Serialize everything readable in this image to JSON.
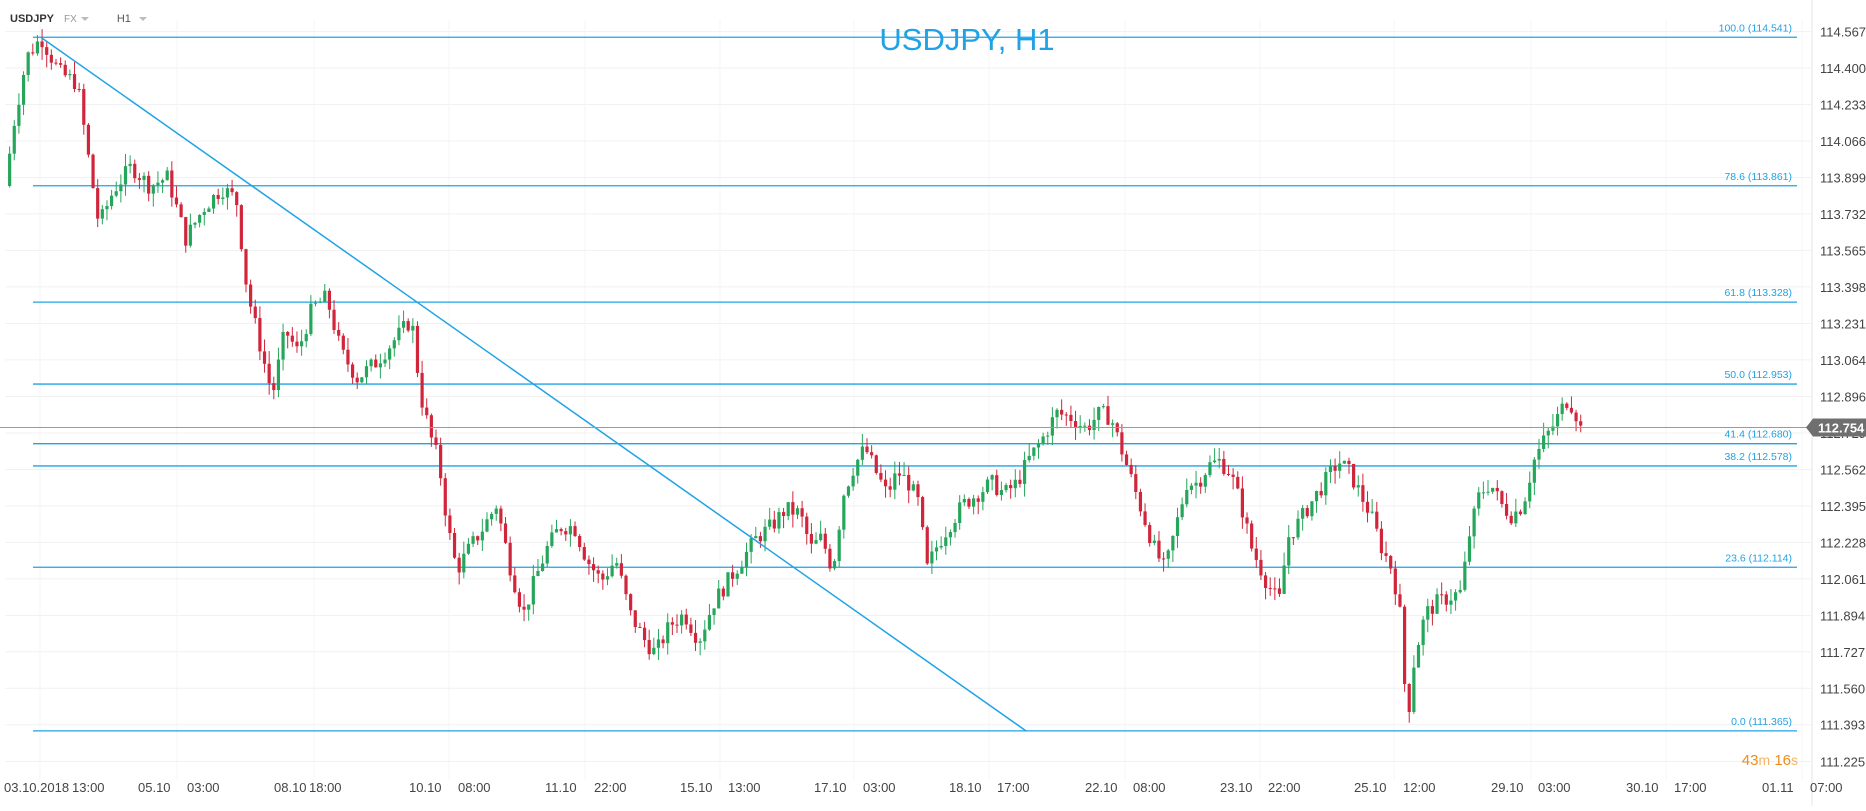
{
  "toolbar": {
    "symbol": "USDJPY",
    "market": "FX",
    "timeframe": "H1"
  },
  "timer": {
    "minutes": "43",
    "minutes_unit": "m",
    "seconds": "16",
    "seconds_unit": "s"
  },
  "colors": {
    "bull": "#26a65b",
    "bear": "#d0253b",
    "line": "#1fa3e6",
    "axis_text": "#444444",
    "title": "#1fa3e6",
    "price_badge": "#6f6f6f",
    "timer": "#f08c1a"
  },
  "chart_data": {
    "type": "candlestick",
    "title": "USDJPY, H1",
    "ylim": [
      111.14,
      114.62
    ],
    "y_ticks": [
      "114.567",
      "114.400",
      "114.233",
      "114.066",
      "113.899",
      "113.732",
      "113.565",
      "113.398",
      "113.231",
      "113.064",
      "112.896",
      "112.729",
      "112.562",
      "112.395",
      "112.228",
      "112.061",
      "111.894",
      "111.727",
      "111.560",
      "111.393",
      "111.225"
    ],
    "x_ticks": [
      "03.10.2018",
      "13:00",
      "05.10",
      "03:00",
      "08.10",
      "18:00",
      "10.10",
      "08:00",
      "11.10",
      "22:00",
      "15.10",
      "13:00",
      "17.10",
      "03:00",
      "18.10",
      "17:00",
      "22.10",
      "08:00",
      "23.10",
      "22:00",
      "25.10",
      "12:00",
      "29.10",
      "03:00",
      "30.10",
      "17:00",
      "01.11",
      "07:00"
    ],
    "current_price": "112.754",
    "fibonacci": [
      {
        "label": "100.0 (114.541)",
        "price": 114.541
      },
      {
        "label": "78.6 (113.861)",
        "price": 113.861
      },
      {
        "label": "61.8 (113.328)",
        "price": 113.328
      },
      {
        "label": "50.0 (112.953)",
        "price": 112.953
      },
      {
        "label": "41.4 (112.680)",
        "price": 112.68
      },
      {
        "label": "38.2 (112.578)",
        "price": 112.578
      },
      {
        "label": "23.6 (112.114)",
        "price": 112.114
      },
      {
        "label": "0.0 (111.365)",
        "price": 111.365
      }
    ],
    "trendline": {
      "from": {
        "x": 0.02,
        "price": 114.54
      },
      "to": {
        "x": 0.565,
        "price": 111.365
      }
    },
    "path": [
      [
        0.0,
        113.86
      ],
      [
        0.005,
        114.15
      ],
      [
        0.012,
        114.45
      ],
      [
        0.02,
        114.54
      ],
      [
        0.03,
        114.38
      ],
      [
        0.04,
        114.33
      ],
      [
        0.046,
        114.0
      ],
      [
        0.052,
        113.68
      ],
      [
        0.06,
        113.84
      ],
      [
        0.07,
        113.95
      ],
      [
        0.08,
        113.86
      ],
      [
        0.09,
        113.9
      ],
      [
        0.1,
        113.62
      ],
      [
        0.11,
        113.76
      ],
      [
        0.12,
        113.85
      ],
      [
        0.128,
        113.8
      ],
      [
        0.134,
        113.38
      ],
      [
        0.142,
        113.1
      ],
      [
        0.148,
        112.9
      ],
      [
        0.155,
        113.2
      ],
      [
        0.162,
        113.1
      ],
      [
        0.17,
        113.3
      ],
      [
        0.178,
        113.35
      ],
      [
        0.186,
        113.1
      ],
      [
        0.195,
        112.98
      ],
      [
        0.205,
        113.05
      ],
      [
        0.215,
        113.15
      ],
      [
        0.225,
        113.25
      ],
      [
        0.23,
        112.9
      ],
      [
        0.236,
        112.7
      ],
      [
        0.24,
        112.6
      ],
      [
        0.245,
        112.3
      ],
      [
        0.25,
        112.1
      ],
      [
        0.257,
        112.2
      ],
      [
        0.265,
        112.3
      ],
      [
        0.272,
        112.4
      ],
      [
        0.28,
        112.1
      ],
      [
        0.287,
        111.9
      ],
      [
        0.293,
        112.05
      ],
      [
        0.3,
        112.2
      ],
      [
        0.307,
        112.3
      ],
      [
        0.315,
        112.3
      ],
      [
        0.322,
        112.15
      ],
      [
        0.33,
        112.05
      ],
      [
        0.338,
        112.15
      ],
      [
        0.346,
        111.9
      ],
      [
        0.354,
        111.78
      ],
      [
        0.36,
        111.72
      ],
      [
        0.368,
        111.85
      ],
      [
        0.376,
        111.9
      ],
      [
        0.384,
        111.78
      ],
      [
        0.392,
        111.95
      ],
      [
        0.4,
        112.05
      ],
      [
        0.408,
        112.15
      ],
      [
        0.416,
        112.25
      ],
      [
        0.424,
        112.3
      ],
      [
        0.432,
        112.38
      ],
      [
        0.44,
        112.36
      ],
      [
        0.446,
        112.2
      ],
      [
        0.452,
        112.25
      ],
      [
        0.458,
        112.1
      ],
      [
        0.464,
        112.45
      ],
      [
        0.47,
        112.58
      ],
      [
        0.476,
        112.66
      ],
      [
        0.482,
        112.55
      ],
      [
        0.488,
        112.45
      ],
      [
        0.494,
        112.55
      ],
      [
        0.5,
        112.5
      ],
      [
        0.506,
        112.4
      ],
      [
        0.51,
        112.1
      ],
      [
        0.515,
        112.2
      ],
      [
        0.522,
        112.3
      ],
      [
        0.53,
        112.4
      ],
      [
        0.538,
        112.45
      ],
      [
        0.546,
        112.5
      ],
      [
        0.553,
        112.45
      ],
      [
        0.56,
        112.5
      ],
      [
        0.566,
        112.6
      ],
      [
        0.574,
        112.7
      ],
      [
        0.582,
        112.82
      ],
      [
        0.59,
        112.8
      ],
      [
        0.598,
        112.75
      ],
      [
        0.606,
        112.82
      ],
      [
        0.612,
        112.8
      ],
      [
        0.618,
        112.65
      ],
      [
        0.624,
        112.5
      ],
      [
        0.63,
        112.35
      ],
      [
        0.636,
        112.2
      ],
      [
        0.642,
        112.1
      ],
      [
        0.648,
        112.3
      ],
      [
        0.654,
        112.5
      ],
      [
        0.66,
        112.5
      ],
      [
        0.666,
        112.58
      ],
      [
        0.672,
        112.6
      ],
      [
        0.678,
        112.55
      ],
      [
        0.684,
        112.4
      ],
      [
        0.69,
        112.2
      ],
      [
        0.698,
        112.05
      ],
      [
        0.705,
        111.95
      ],
      [
        0.71,
        112.25
      ],
      [
        0.716,
        112.32
      ],
      [
        0.722,
        112.4
      ],
      [
        0.73,
        112.5
      ],
      [
        0.738,
        112.6
      ],
      [
        0.744,
        112.55
      ],
      [
        0.75,
        112.45
      ],
      [
        0.756,
        112.35
      ],
      [
        0.762,
        112.2
      ],
      [
        0.768,
        112.1
      ],
      [
        0.772,
        111.9
      ],
      [
        0.776,
        111.4
      ],
      [
        0.78,
        111.7
      ],
      [
        0.786,
        111.9
      ],
      [
        0.792,
        111.95
      ],
      [
        0.8,
        111.98
      ],
      [
        0.806,
        112.0
      ],
      [
        0.81,
        112.25
      ],
      [
        0.816,
        112.45
      ],
      [
        0.822,
        112.5
      ],
      [
        0.828,
        112.4
      ],
      [
        0.834,
        112.35
      ],
      [
        0.84,
        112.4
      ],
      [
        0.846,
        112.6
      ],
      [
        0.852,
        112.7
      ],
      [
        0.858,
        112.78
      ],
      [
        0.864,
        112.88
      ],
      [
        0.868,
        112.85
      ],
      [
        0.872,
        112.75
      ]
    ]
  }
}
